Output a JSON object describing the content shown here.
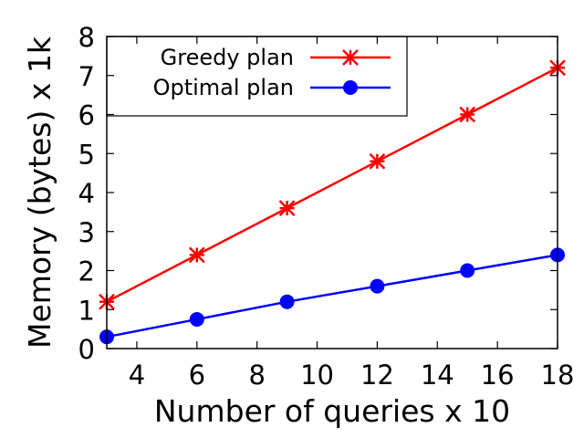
{
  "chart_data": {
    "type": "line",
    "title": "",
    "xlabel": "Number of queries x 10",
    "ylabel": "Memory (bytes) x 1k",
    "xlim": [
      3,
      18
    ],
    "ylim": [
      0,
      8
    ],
    "xticks": [
      4,
      6,
      8,
      10,
      12,
      14,
      16,
      18
    ],
    "yticks": [
      0,
      1,
      2,
      3,
      4,
      5,
      6,
      7,
      8
    ],
    "grid": false,
    "legend_position": "top-left",
    "x": [
      3,
      6,
      9,
      12,
      15,
      18
    ],
    "series": [
      {
        "name": "Greedy plan",
        "color": "#ff0000",
        "marker": "asterisk",
        "values": [
          1.2,
          2.4,
          3.6,
          4.8,
          6.0,
          7.2
        ]
      },
      {
        "name": "Optimal plan",
        "color": "#0000ff",
        "marker": "circle",
        "values": [
          0.3,
          0.75,
          1.2,
          1.6,
          2.0,
          2.4
        ]
      }
    ]
  }
}
